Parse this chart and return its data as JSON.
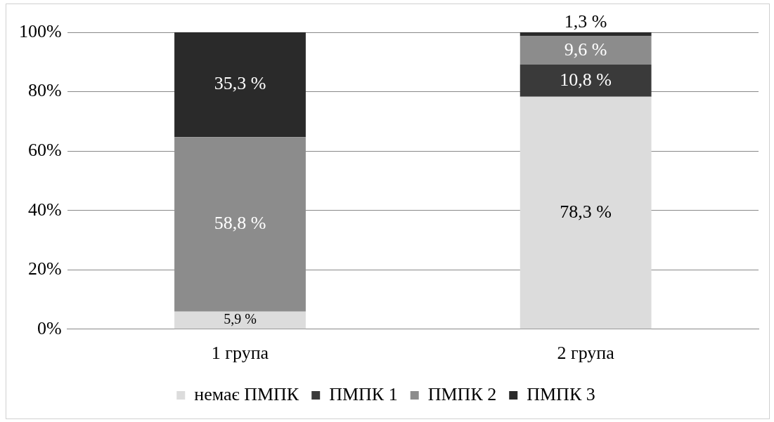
{
  "chart_data": {
    "type": "bar",
    "stacked": true,
    "categories": [
      "1 група",
      "2 група"
    ],
    "series": [
      {
        "name": "немає ПМПК",
        "color": "#dcdcdc",
        "values": [
          5.9,
          78.3
        ],
        "value_labels": [
          "5,9 %",
          "78,3 %"
        ]
      },
      {
        "name": "ПМПК 1",
        "color": "#3a3a3a",
        "values": [
          0,
          10.8
        ],
        "value_labels": [
          null,
          "10,8 %"
        ]
      },
      {
        "name": "ПМПК 2",
        "color": "#8c8c8c",
        "values": [
          58.8,
          9.6
        ],
        "value_labels": [
          "58,8 %",
          "9,6 %"
        ]
      },
      {
        "name": "ПМПК 3",
        "color": "#2a2a2a",
        "values": [
          35.3,
          1.3
        ],
        "value_labels": [
          "35,3 %",
          "1,3 %"
        ]
      }
    ],
    "ylim": [
      0,
      100
    ],
    "yticks": [
      {
        "value": 0,
        "label": "0%"
      },
      {
        "value": 20,
        "label": "20%"
      },
      {
        "value": 40,
        "label": "40%"
      },
      {
        "value": 60,
        "label": "60%"
      },
      {
        "value": 80,
        "label": "80%"
      },
      {
        "value": 100,
        "label": "100%"
      }
    ],
    "grid": "y",
    "legend": "bottom"
  }
}
